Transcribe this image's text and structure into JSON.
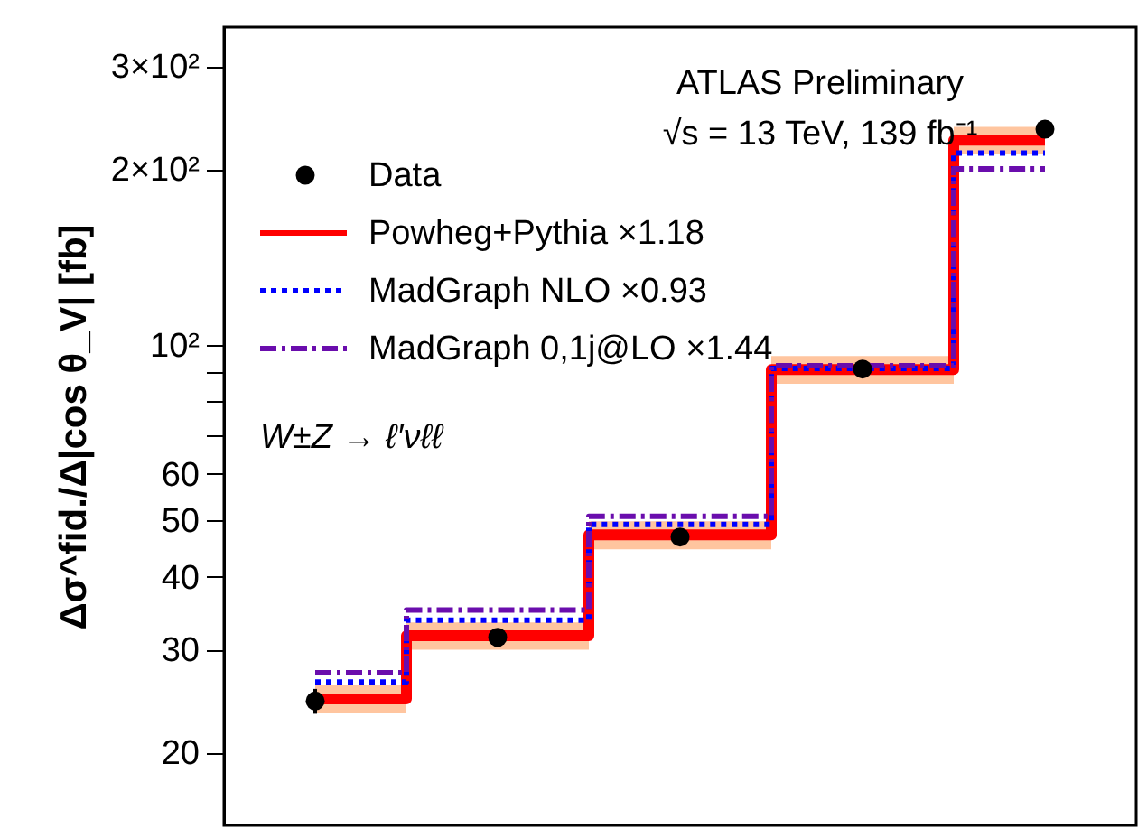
{
  "chart_data": {
    "type": "step",
    "ylabel": "Δσ^fid./Δ|cos θ_V| [fb]",
    "categories": [
      null,
      null,
      null,
      null,
      null
    ],
    "series": [
      {
        "name": "Data",
        "type": "scatter",
        "color": "#000000",
        "marker": "circle",
        "values": [
          24.5,
          31.5,
          46.8,
          90.8,
          234
        ],
        "errors": [
          1.2,
          1.1,
          1.4,
          2.2,
          5
        ]
      },
      {
        "name": "Powheg+Pythia ×1.18",
        "color": "#ff0000",
        "line_style": "solid",
        "values": [
          24.7,
          31.7,
          47.2,
          90.6,
          224
        ],
        "lower": [
          23.4,
          30.0,
          44.6,
          85.7,
          212
        ],
        "upper": [
          26.1,
          33.4,
          49.8,
          95.6,
          236
        ]
      },
      {
        "name": "MadGraph NLO ×0.93",
        "color": "#0000ff",
        "line_style": "dotted",
        "values": [
          26.4,
          33.7,
          49.2,
          91,
          213
        ]
      },
      {
        "name": "MadGraph 0,1j@LO ×1.44",
        "color": "#6a0dad",
        "line_style": "dashed",
        "values": [
          27.4,
          35.1,
          50.8,
          92,
          200
        ]
      }
    ],
    "log": "y",
    "ylim": [
      15,
      350
    ],
    "yticks": [
      20,
      30,
      40,
      50,
      60,
      {
        "value": 70,
        "label": null
      },
      {
        "value": 80,
        "label": null
      },
      {
        "value": 90,
        "label": null
      },
      {
        "value": 100,
        "label": "10²"
      },
      {
        "value": 200,
        "label": "2×10²"
      },
      {
        "value": 300,
        "label": "3×10²"
      }
    ],
    "tick_labels": "y",
    "grid": false,
    "legend": "top left",
    "annotations": [
      "ATLAS Preliminary",
      "√s = 13 TeV, 139 fb⁻¹",
      "W±Z → ℓ′νℓℓ"
    ]
  }
}
